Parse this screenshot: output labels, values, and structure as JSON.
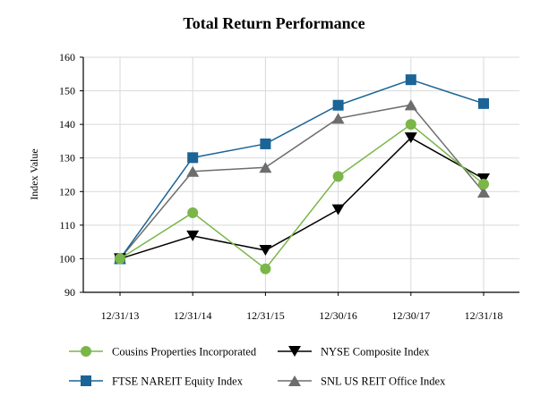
{
  "chart_data": {
    "type": "line",
    "title": "Total Return Performance",
    "xlabel": "",
    "ylabel": "Index Value",
    "categories": [
      "12/31/13",
      "12/31/14",
      "12/31/15",
      "12/30/16",
      "12/30/17",
      "12/31/18"
    ],
    "ylim": [
      90,
      160
    ],
    "yticks": [
      90,
      100,
      110,
      120,
      130,
      140,
      150,
      160
    ],
    "grid": true,
    "series": [
      {
        "name": "Cousins Properties Incorporated",
        "marker": "circle",
        "color": "#7ab648",
        "values": [
          100,
          113.7,
          97.0,
          124.5,
          140.0,
          122.2
        ]
      },
      {
        "name": "NYSE Composite Index",
        "marker": "triangle-down",
        "color": "#000000",
        "values": [
          100,
          106.8,
          102.5,
          114.6,
          136.0,
          123.8
        ]
      },
      {
        "name": "FTSE NAREIT Equity Index",
        "marker": "square",
        "color": "#1a6496",
        "values": [
          100,
          130.1,
          134.2,
          145.7,
          153.3,
          146.2
        ]
      },
      {
        "name": "SNL US REIT Office Index",
        "marker": "triangle-up",
        "color": "#6d6d6d",
        "values": [
          100,
          126.0,
          127.2,
          141.8,
          145.8,
          119.8
        ]
      }
    ],
    "legend_order": [
      0,
      1,
      2,
      3
    ]
  }
}
